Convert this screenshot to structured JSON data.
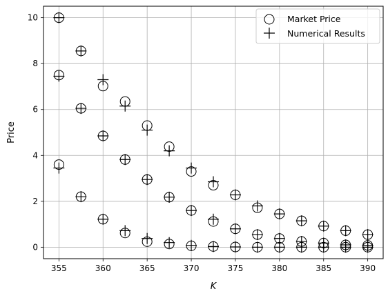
{
  "chart_data": {
    "type": "scatter",
    "xlabel": "K",
    "ylabel": "Price",
    "xlim": [
      353.25,
      391.75
    ],
    "ylim": [
      -0.5,
      10.5
    ],
    "xticks": [
      355,
      360,
      365,
      370,
      375,
      380,
      385,
      390
    ],
    "yticks": [
      0,
      2,
      4,
      6,
      8,
      10
    ],
    "grid": true,
    "legend_position": "top-right",
    "series": [
      {
        "name": "Market Price",
        "marker": "circle",
        "points": [
          [
            355,
            10.0
          ],
          [
            355,
            7.5
          ],
          [
            355,
            3.6
          ],
          [
            357.5,
            8.55
          ],
          [
            357.5,
            6.05
          ],
          [
            357.5,
            2.2
          ],
          [
            360,
            7.02
          ],
          [
            360,
            4.85
          ],
          [
            360,
            1.22
          ],
          [
            362.5,
            6.35
          ],
          [
            362.5,
            3.82
          ],
          [
            362.5,
            0.62
          ],
          [
            365,
            5.3
          ],
          [
            365,
            2.95
          ],
          [
            365,
            0.24
          ],
          [
            367.5,
            4.38
          ],
          [
            367.5,
            2.18
          ],
          [
            367.5,
            0.14
          ],
          [
            370,
            3.3
          ],
          [
            370,
            1.6
          ],
          [
            370,
            0.06
          ],
          [
            372.5,
            2.7
          ],
          [
            372.5,
            1.12
          ],
          [
            372.5,
            0.03
          ],
          [
            375,
            2.28
          ],
          [
            375,
            0.8
          ],
          [
            375,
            0.01
          ],
          [
            377.5,
            1.72
          ],
          [
            377.5,
            0.55
          ],
          [
            377.5,
            0.0
          ],
          [
            380,
            1.45
          ],
          [
            380,
            0.38
          ],
          [
            380,
            0.0
          ],
          [
            382.5,
            1.15
          ],
          [
            382.5,
            0.25
          ],
          [
            382.5,
            0.0
          ],
          [
            385,
            0.92
          ],
          [
            385,
            0.18
          ],
          [
            385,
            0.0
          ],
          [
            387.5,
            0.72
          ],
          [
            387.5,
            0.1
          ],
          [
            387.5,
            0.0
          ],
          [
            390,
            0.55
          ],
          [
            390,
            0.08
          ],
          [
            390,
            0.0
          ]
        ]
      },
      {
        "name": "Numerical Results",
        "marker": "plus",
        "points": [
          [
            355,
            10.0
          ],
          [
            355,
            7.45
          ],
          [
            355,
            3.45
          ],
          [
            357.5,
            8.55
          ],
          [
            357.5,
            6.05
          ],
          [
            357.5,
            2.2
          ],
          [
            360,
            7.3
          ],
          [
            360,
            4.85
          ],
          [
            360,
            1.22
          ],
          [
            362.5,
            6.15
          ],
          [
            362.5,
            3.82
          ],
          [
            362.5,
            0.72
          ],
          [
            365,
            5.1
          ],
          [
            365,
            2.95
          ],
          [
            365,
            0.38
          ],
          [
            367.5,
            4.2
          ],
          [
            367.5,
            2.18
          ],
          [
            367.5,
            0.2
          ],
          [
            370,
            3.45
          ],
          [
            370,
            1.6
          ],
          [
            370,
            0.08
          ],
          [
            372.5,
            2.85
          ],
          [
            372.5,
            1.22
          ],
          [
            372.5,
            0.03
          ],
          [
            375,
            2.28
          ],
          [
            375,
            0.8
          ],
          [
            375,
            0.01
          ],
          [
            377.5,
            1.8
          ],
          [
            377.5,
            0.55
          ],
          [
            377.5,
            0.0
          ],
          [
            380,
            1.45
          ],
          [
            380,
            0.38
          ],
          [
            380,
            0.0
          ],
          [
            382.5,
            1.15
          ],
          [
            382.5,
            0.25
          ],
          [
            382.5,
            0.0
          ],
          [
            385,
            0.92
          ],
          [
            385,
            0.18
          ],
          [
            385,
            0.0
          ],
          [
            387.5,
            0.72
          ],
          [
            387.5,
            0.1
          ],
          [
            387.5,
            0.0
          ],
          [
            390,
            0.55
          ],
          [
            390,
            0.08
          ],
          [
            390,
            0.0
          ]
        ]
      }
    ]
  }
}
